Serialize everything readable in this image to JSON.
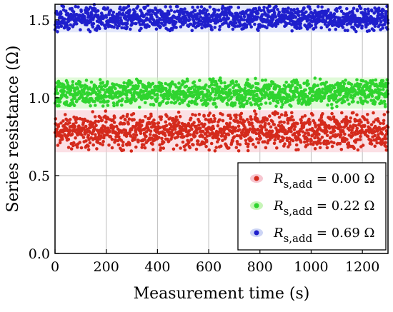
{
  "chart_data": {
    "type": "scatter",
    "xlabel": "Measurement time (s)",
    "ylabel": "Series resistance (Ω)",
    "xlim": [
      0,
      1300
    ],
    "ylim": [
      0,
      1.6
    ],
    "xticks": [
      "0",
      "200",
      "400",
      "600",
      "800",
      "1000",
      "1200"
    ],
    "yticks": [
      "0.0",
      "0.5",
      "1.0",
      "1.5"
    ],
    "grid": true,
    "legend_placement": "bottom-right",
    "series": [
      {
        "name": "R_s,add = 0.00 Ω",
        "legend_symbol": "R",
        "legend_subscript": "s,add",
        "legend_value": "= 0.00 Ω",
        "color": "#d42a1c",
        "glow": "#f7c6d0",
        "x_range": [
          0,
          1300
        ],
        "y_band": [
          0.65,
          0.92
        ],
        "approx_mean": 0.79,
        "point_count": 1300
      },
      {
        "name": "R_s,add = 0.22 Ω",
        "legend_symbol": "R",
        "legend_subscript": "s,add",
        "legend_value": "= 0.22 Ω",
        "color": "#2fd42f",
        "glow": "#c7f5b8",
        "x_range": [
          0,
          1300
        ],
        "y_band": [
          0.93,
          1.13
        ],
        "approx_mean": 1.03,
        "point_count": 1300
      },
      {
        "name": "R_s,add = 0.69 Ω",
        "legend_symbol": "R",
        "legend_subscript": "s,add",
        "legend_value": "= 0.69 Ω",
        "color": "#1f1fcc",
        "glow": "#ccd4f5",
        "x_range": [
          0,
          1300
        ],
        "y_band": [
          1.42,
          1.6
        ],
        "approx_mean": 1.51,
        "point_count": 1300
      }
    ]
  }
}
